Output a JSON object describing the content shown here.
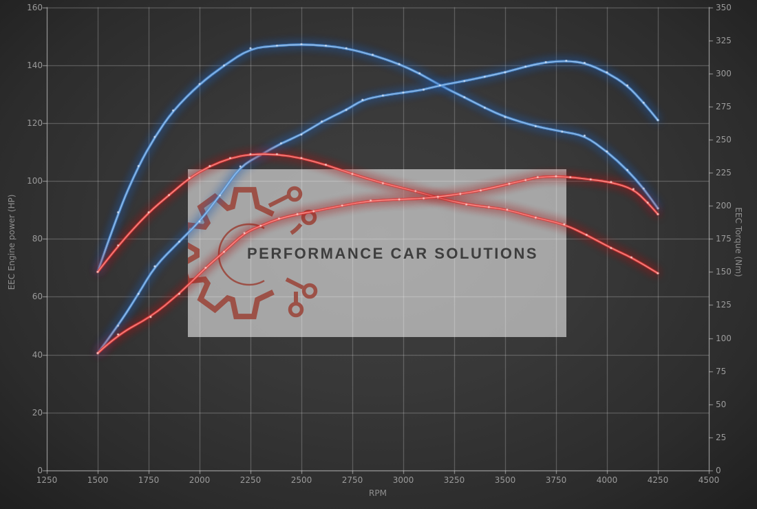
{
  "watermark": {
    "text": "PERFORMANCE CAR SOLUTIONS"
  },
  "colors": {
    "background_center": "#404040",
    "background_edge": "#1f1f1f",
    "grid": "rgba(205,205,205,0.38)",
    "axis": "rgba(220,220,220,0.65)",
    "tick_text": "#9b9b9b",
    "watermark_box": "rgba(255,255,255,0.55)",
    "watermark_logo": "#9c4a40",
    "watermark_text": "#3e3e3e",
    "blue_curve": "#4a8ed8",
    "red_curve": "#e03030"
  },
  "chart_data": {
    "type": "line",
    "title": "",
    "legend": "none",
    "grid": true,
    "x_axis": {
      "label": "RPM",
      "min": 1250,
      "max": 4500,
      "tick_step": 250,
      "ticks": [
        1250,
        1500,
        1750,
        2000,
        2250,
        2500,
        2750,
        3000,
        3250,
        3500,
        3750,
        4000,
        4250,
        4500
      ]
    },
    "y_axis_left": {
      "label": "EEC Engine power (HP)",
      "min": 0,
      "max": 160,
      "tick_step": 20,
      "ticks": [
        0,
        20,
        40,
        60,
        80,
        100,
        120,
        140,
        160
      ]
    },
    "y_axis_right": {
      "label": "EEC Torque (Nm)",
      "min": 0,
      "max": 350,
      "tick_step": 25,
      "ticks": [
        0,
        25,
        50,
        75,
        100,
        125,
        150,
        175,
        200,
        225,
        250,
        275,
        300,
        325,
        350
      ]
    },
    "series": [
      {
        "name": "torque-curve-blue",
        "axis": "right",
        "unit": "Nm",
        "color": "#4a8ed8",
        "glow": "#1f5cb0",
        "bright": "#b8d4f0",
        "dot": "#d4e4f8",
        "points": [
          [
            1500,
            150
          ],
          [
            1600,
            195
          ],
          [
            1700,
            230
          ],
          [
            1780,
            252
          ],
          [
            1870,
            272
          ],
          [
            2000,
            292
          ],
          [
            2120,
            306
          ],
          [
            2250,
            319
          ],
          [
            2380,
            321
          ],
          [
            2500,
            322
          ],
          [
            2620,
            321
          ],
          [
            2720,
            319
          ],
          [
            2850,
            314
          ],
          [
            2980,
            307
          ],
          [
            3080,
            300
          ],
          [
            3180,
            291
          ],
          [
            3300,
            282
          ],
          [
            3400,
            274
          ],
          [
            3500,
            267
          ],
          [
            3650,
            260
          ],
          [
            3780,
            256
          ],
          [
            3890,
            253
          ],
          [
            4000,
            241
          ],
          [
            4100,
            227
          ],
          [
            4180,
            213
          ],
          [
            4250,
            198
          ]
        ]
      },
      {
        "name": "power-curve-blue",
        "axis": "left",
        "unit": "HP",
        "color": "#4a8ed8",
        "glow": "#1f5cb0",
        "bright": "#b8d4f0",
        "dot": "#d4e4f8",
        "points": [
          [
            1500,
            40.5
          ],
          [
            1600,
            50
          ],
          [
            1700,
            61
          ],
          [
            1780,
            70.5
          ],
          [
            1900,
            79
          ],
          [
            2000,
            86
          ],
          [
            2100,
            95
          ],
          [
            2200,
            105
          ],
          [
            2300,
            109
          ],
          [
            2400,
            113
          ],
          [
            2500,
            116
          ],
          [
            2600,
            120.5
          ],
          [
            2720,
            124.5
          ],
          [
            2800,
            128
          ],
          [
            2900,
            129.5
          ],
          [
            3000,
            130.5
          ],
          [
            3100,
            131.5
          ],
          [
            3180,
            133
          ],
          [
            3300,
            134.5
          ],
          [
            3400,
            136
          ],
          [
            3500,
            137.5
          ],
          [
            3600,
            139.5
          ],
          [
            3700,
            141
          ],
          [
            3800,
            141.5
          ],
          [
            3890,
            140.8
          ],
          [
            4000,
            137.5
          ],
          [
            4100,
            133
          ],
          [
            4180,
            127
          ],
          [
            4250,
            121
          ]
        ]
      },
      {
        "name": "torque-curve-red",
        "axis": "right",
        "unit": "Nm",
        "color": "#e03030",
        "glow": "#a51515",
        "bright": "#ffb3ac",
        "dot": "#ffd2cc",
        "points": [
          [
            1500,
            150
          ],
          [
            1600,
            170
          ],
          [
            1750,
            195
          ],
          [
            1850,
            208
          ],
          [
            1950,
            221
          ],
          [
            2050,
            230
          ],
          [
            2150,
            236
          ],
          [
            2250,
            239
          ],
          [
            2380,
            239
          ],
          [
            2500,
            236
          ],
          [
            2620,
            231
          ],
          [
            2750,
            224
          ],
          [
            2900,
            217
          ],
          [
            3060,
            211
          ],
          [
            3170,
            206
          ],
          [
            3310,
            201
          ],
          [
            3420,
            199
          ],
          [
            3510,
            197
          ],
          [
            3650,
            191
          ],
          [
            3790,
            186
          ],
          [
            3900,
            178
          ],
          [
            4020,
            168
          ],
          [
            4120,
            161
          ],
          [
            4250,
            149
          ]
        ]
      },
      {
        "name": "power-curve-red",
        "axis": "left",
        "unit": "HP",
        "color": "#e03030",
        "glow": "#a51515",
        "bright": "#ffb3ac",
        "dot": "#ffd2cc",
        "points": [
          [
            1500,
            40.5
          ],
          [
            1600,
            47
          ],
          [
            1760,
            53
          ],
          [
            1900,
            61
          ],
          [
            2030,
            70
          ],
          [
            2120,
            75.5
          ],
          [
            2220,
            82
          ],
          [
            2300,
            84.5
          ],
          [
            2390,
            87
          ],
          [
            2480,
            88.5
          ],
          [
            2560,
            89.5
          ],
          [
            2700,
            91.5
          ],
          [
            2840,
            93.2
          ],
          [
            2980,
            93.6
          ],
          [
            3100,
            94
          ],
          [
            3170,
            94.5
          ],
          [
            3280,
            95.5
          ],
          [
            3380,
            96.7
          ],
          [
            3520,
            99
          ],
          [
            3600,
            100.3
          ],
          [
            3660,
            101.3
          ],
          [
            3750,
            101.6
          ],
          [
            3820,
            101.3
          ],
          [
            3920,
            100.5
          ],
          [
            4020,
            99.6
          ],
          [
            4130,
            97.2
          ],
          [
            4200,
            92.5
          ],
          [
            4250,
            88.5
          ]
        ]
      }
    ]
  }
}
